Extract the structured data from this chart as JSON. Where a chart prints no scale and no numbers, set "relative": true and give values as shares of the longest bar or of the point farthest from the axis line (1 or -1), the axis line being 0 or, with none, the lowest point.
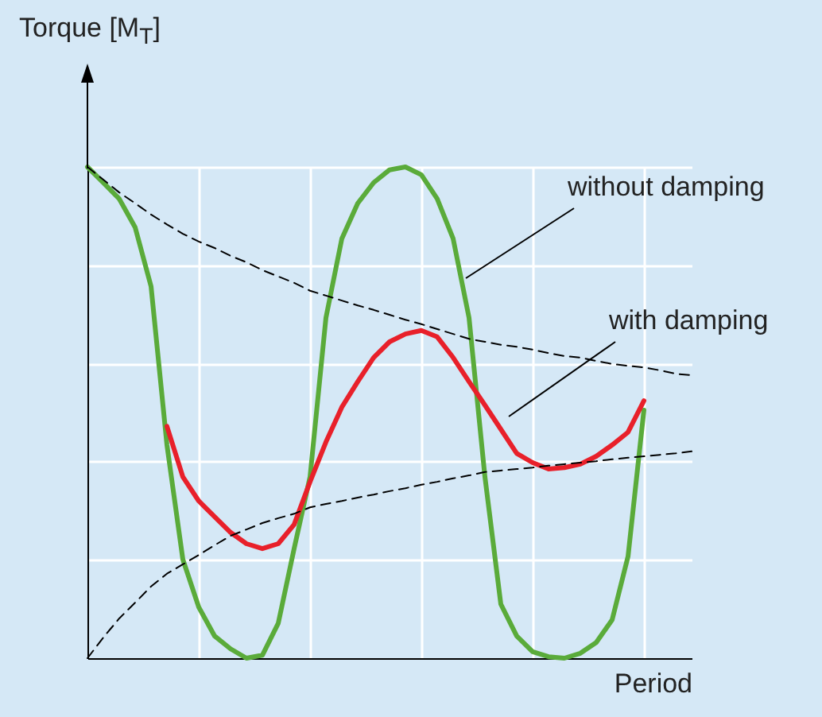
{
  "chart_data": {
    "type": "line",
    "relative": true,
    "grid": true,
    "xlabel": "Period",
    "ylabel": "Torque [M$_{T}$]",
    "annotations": [
      "without damping",
      "with damping"
    ],
    "categories": [
      null,
      null,
      null,
      null,
      null,
      null,
      null,
      null,
      null,
      null,
      null,
      null,
      null,
      null,
      null,
      null,
      null,
      null,
      null,
      null,
      null,
      null,
      null,
      null,
      null,
      null,
      null,
      null,
      null,
      null,
      null,
      null,
      null,
      null,
      null,
      null,
      null,
      null,
      null
    ],
    "series": [
      {
        "color": "#5aab3a",
        "line_style": "solid",
        "values": [
          1.0,
          0.968,
          0.935,
          0.877,
          0.757,
          0.434,
          0.201,
          0.104,
          0.045,
          0.019,
          0,
          0.006,
          0.071,
          0.223,
          0.369,
          0.693,
          0.854,
          0.926,
          0.968,
          0.994,
          1.0,
          0.984,
          0.935,
          0.854,
          0.693,
          0.369,
          0.11,
          0.045,
          0.013,
          0.003,
          0,
          0.01,
          0.032,
          0.078,
          0.207,
          0.505,
          null,
          null,
          null
        ]
      },
      {
        "color": "#e8202a",
        "line_style": "solid",
        "values": [
          null,
          null,
          null,
          null,
          null,
          0.472,
          0.369,
          0.32,
          0.288,
          0.256,
          0.233,
          0.223,
          0.233,
          0.272,
          0.359,
          0.44,
          0.511,
          0.563,
          0.612,
          0.644,
          0.66,
          0.667,
          0.654,
          0.612,
          0.563,
          0.515,
          0.466,
          0.417,
          0.398,
          0.385,
          0.388,
          0.395,
          0.411,
          0.434,
          0.46,
          0.524,
          null,
          null,
          null
        ]
      },
      {
        "color": "#000000",
        "line_style": "dashed",
        "values": [
          1.0,
          0.974,
          0.948,
          0.926,
          0.903,
          0.883,
          0.864,
          0.848,
          0.835,
          0.819,
          0.806,
          0.79,
          0.777,
          0.764,
          0.748,
          0.738,
          0.728,
          0.718,
          0.709,
          0.699,
          0.689,
          0.68,
          0.67,
          0.66,
          0.65,
          0.644,
          0.638,
          0.634,
          0.628,
          0.621,
          0.615,
          0.612,
          0.605,
          0.599,
          0.595,
          0.592,
          0.586,
          0.579,
          0.576
        ]
      },
      {
        "color": "#000000",
        "line_style": "dashed",
        "values": [
          0,
          0.042,
          0.081,
          0.113,
          0.146,
          0.172,
          0.191,
          0.21,
          0.23,
          0.249,
          0.262,
          0.275,
          0.285,
          0.294,
          0.307,
          0.314,
          0.32,
          0.327,
          0.333,
          0.34,
          0.346,
          0.353,
          0.359,
          0.366,
          0.372,
          0.379,
          0.382,
          0.385,
          0.388,
          0.392,
          0.395,
          0.398,
          0.401,
          0.405,
          0.408,
          0.411,
          0.414,
          0.417,
          0.421
        ]
      }
    ]
  }
}
